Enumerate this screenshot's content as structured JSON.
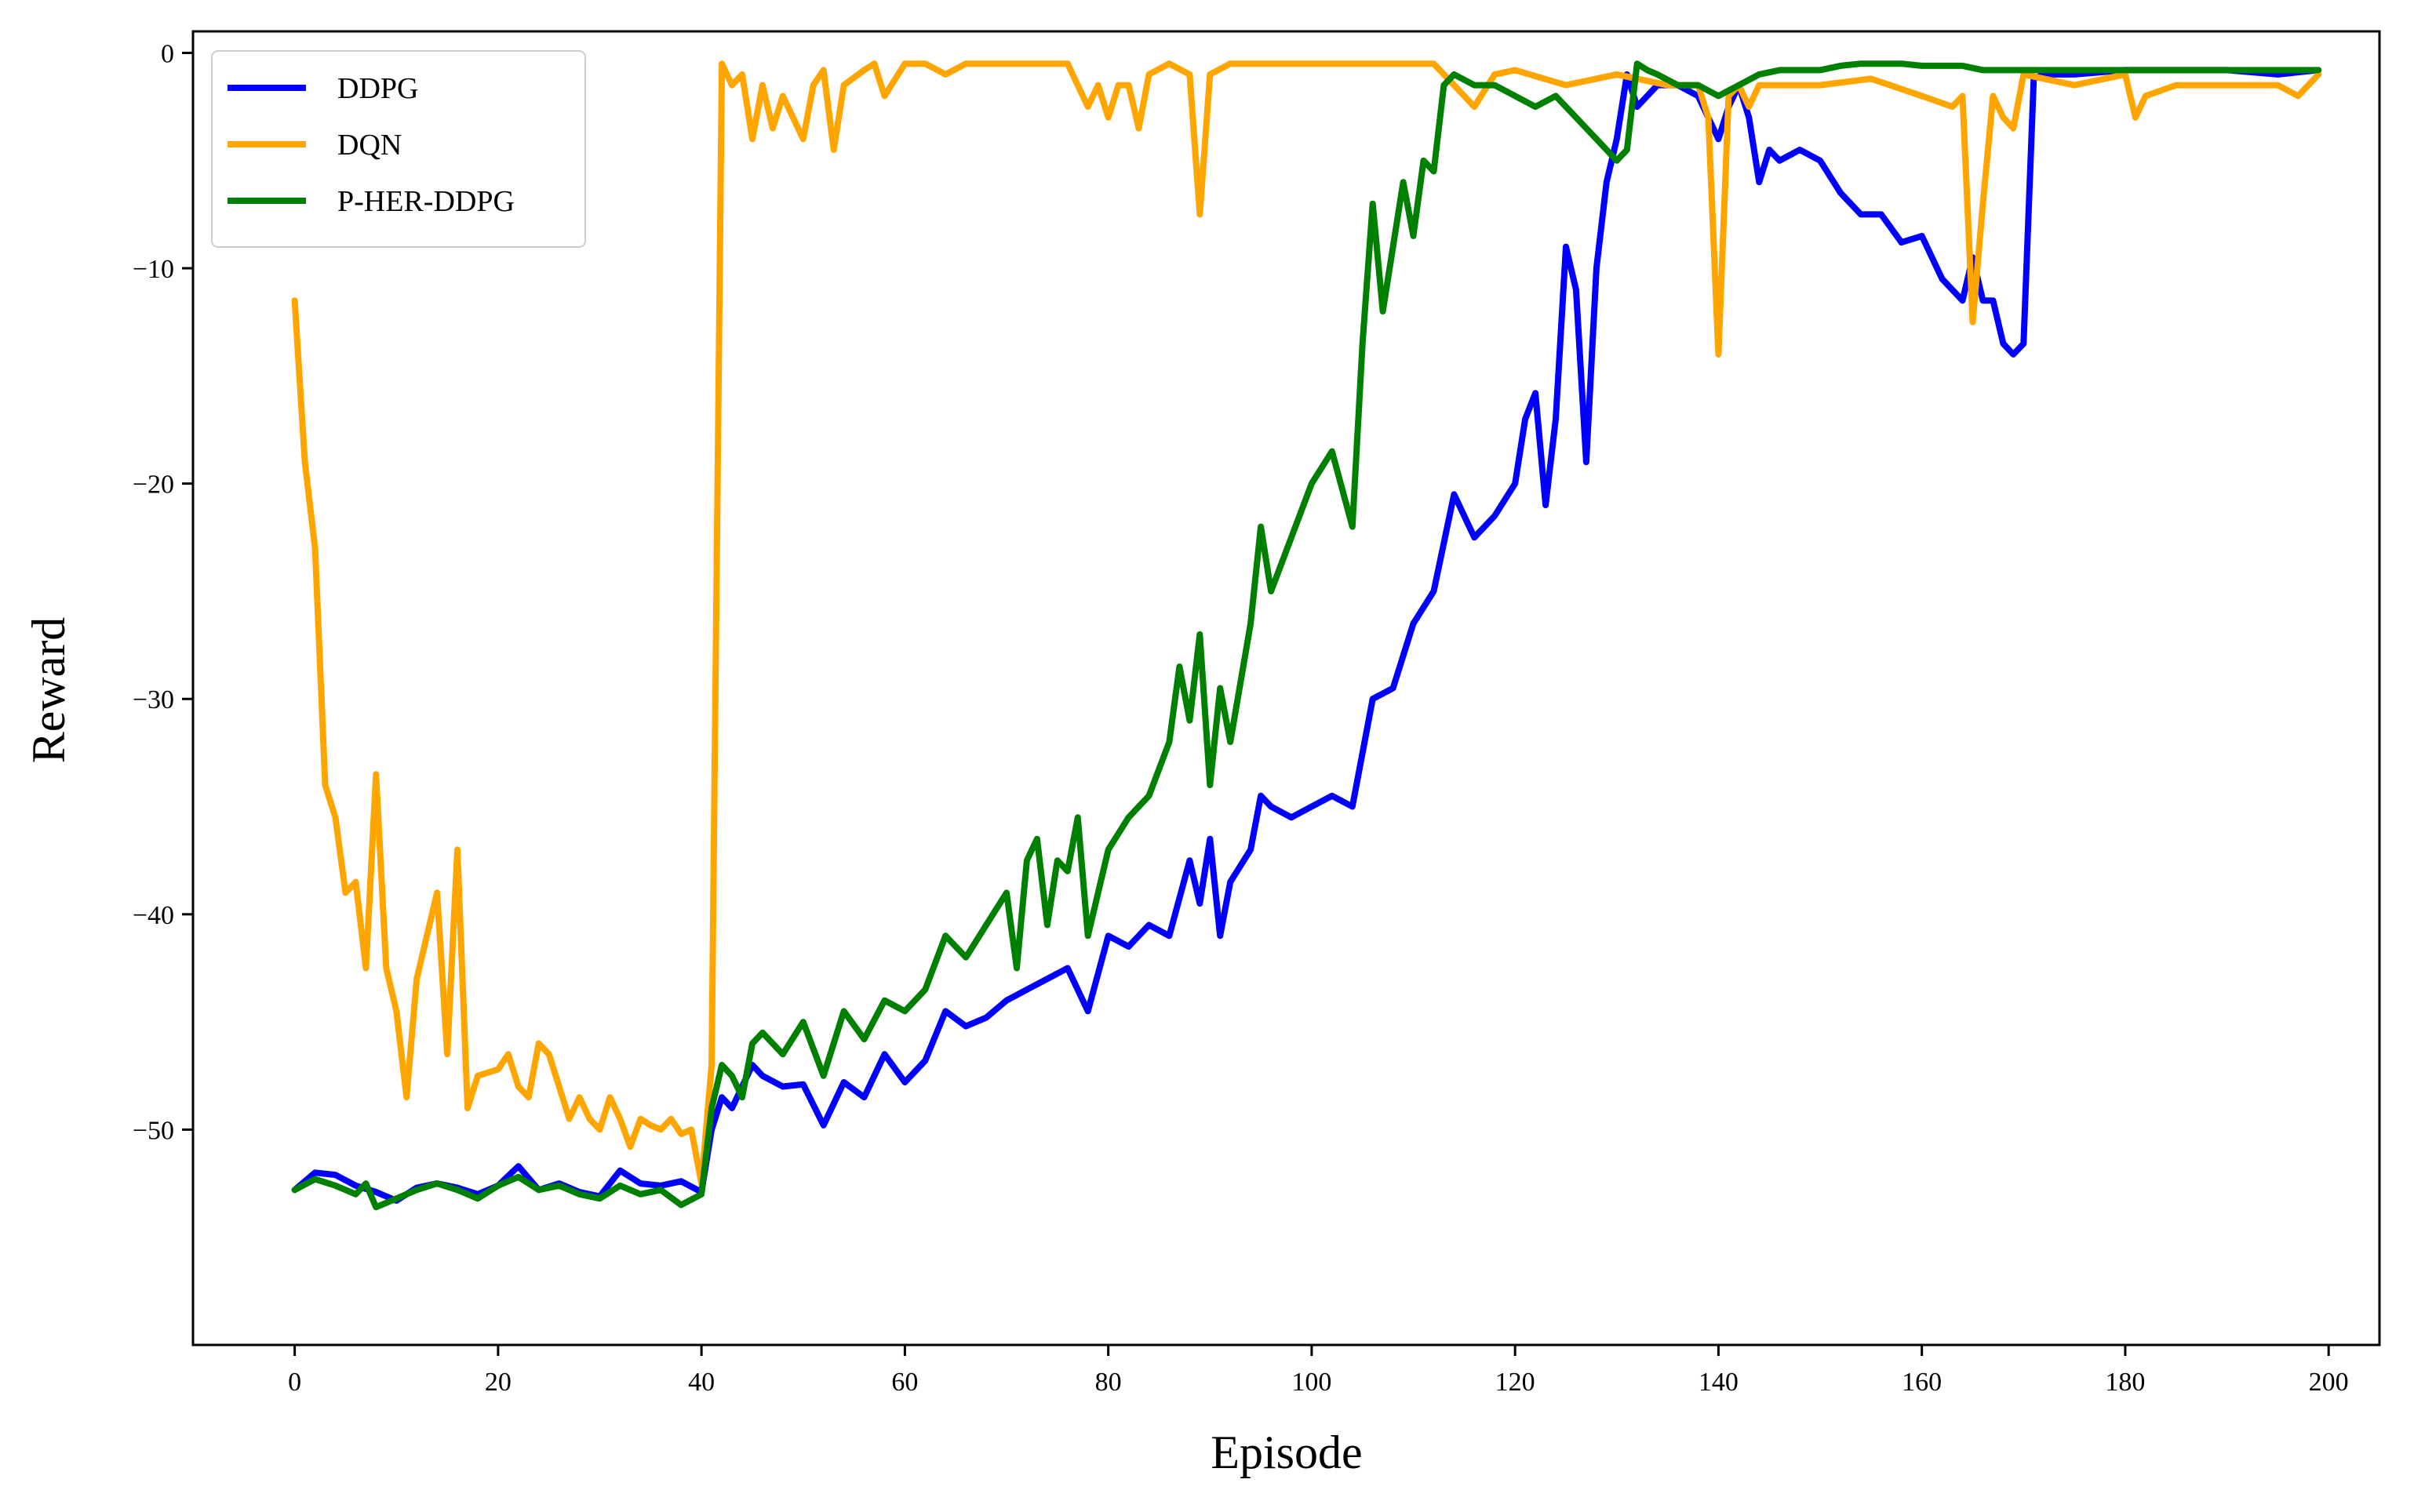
{
  "chart_data": {
    "type": "line",
    "title": "",
    "xlabel": "Episode",
    "ylabel": "Reward",
    "xlim": [
      -10,
      205
    ],
    "ylim": [
      -60,
      1
    ],
    "xticks": [
      0,
      20,
      40,
      60,
      80,
      100,
      120,
      140,
      160,
      180,
      200
    ],
    "yticks": [
      -50,
      -40,
      -30,
      -20,
      -10,
      0
    ],
    "ytick_labels": [
      "−50",
      "−40",
      "−30",
      "−20",
      "−10",
      "0"
    ],
    "grid": false,
    "legend": "top-left",
    "series": [
      {
        "name": "DDPG",
        "color": "#0000ff",
        "x": [
          0,
          2,
          4,
          6,
          8,
          10,
          12,
          14,
          16,
          18,
          20,
          22,
          24,
          26,
          28,
          30,
          32,
          34,
          36,
          38,
          40,
          41,
          42,
          43,
          44,
          45,
          46,
          48,
          50,
          52,
          54,
          56,
          58,
          60,
          62,
          64,
          66,
          68,
          70,
          72,
          74,
          76,
          78,
          80,
          82,
          84,
          86,
          88,
          89,
          90,
          91,
          92,
          94,
          95,
          96,
          98,
          100,
          102,
          104,
          106,
          108,
          110,
          112,
          114,
          116,
          118,
          120,
          121,
          122,
          123,
          124,
          125,
          126,
          127,
          128,
          129,
          130,
          131,
          132,
          134,
          136,
          138,
          140,
          141,
          142,
          143,
          144,
          145,
          146,
          148,
          150,
          152,
          154,
          156,
          158,
          160,
          162,
          164,
          165,
          166,
          167,
          168,
          169,
          170,
          171,
          172,
          175,
          180,
          185,
          190,
          195,
          199
        ],
        "y": [
          -52.8,
          -52.0,
          -52.1,
          -52.6,
          -52.9,
          -53.3,
          -52.7,
          -52.5,
          -52.7,
          -53.0,
          -52.6,
          -51.7,
          -52.8,
          -52.5,
          -52.9,
          -53.1,
          -51.9,
          -52.5,
          -52.6,
          -52.4,
          -52.9,
          -50.0,
          -48.5,
          -49.0,
          -48.0,
          -47.0,
          -47.5,
          -48.0,
          -47.9,
          -49.8,
          -47.8,
          -48.5,
          -46.5,
          -47.8,
          -46.8,
          -44.5,
          -45.2,
          -44.8,
          -44.0,
          -43.5,
          -43.0,
          -42.5,
          -44.5,
          -41.0,
          -41.5,
          -40.5,
          -41.0,
          -37.5,
          -39.5,
          -36.5,
          -41.0,
          -38.5,
          -37.0,
          -34.5,
          -35.0,
          -35.5,
          -35.0,
          -34.5,
          -35.0,
          -30.0,
          -29.5,
          -26.5,
          -25.0,
          -20.5,
          -22.5,
          -21.5,
          -20.0,
          -17.0,
          -15.8,
          -21.0,
          -17.0,
          -9.0,
          -11.0,
          -19.0,
          -10.0,
          -6.0,
          -4.0,
          -1.0,
          -2.5,
          -1.5,
          -1.5,
          -2.0,
          -4.0,
          -2.5,
          -1.5,
          -3.0,
          -6.0,
          -4.5,
          -5.0,
          -4.5,
          -5.0,
          -6.5,
          -7.5,
          -7.5,
          -8.8,
          -8.5,
          -10.5,
          -11.5,
          -9.5,
          -11.5,
          -11.5,
          -13.5,
          -14.0,
          -13.5,
          -1.2,
          -1.0,
          -1.0,
          -0.8,
          -0.8,
          -0.8,
          -1.0,
          -0.8
        ]
      },
      {
        "name": "DQN",
        "color": "#ffa500",
        "x": [
          0,
          1,
          2,
          3,
          4,
          5,
          6,
          7,
          8,
          9,
          10,
          11,
          12,
          13,
          14,
          15,
          16,
          17,
          18,
          20,
          21,
          22,
          23,
          24,
          25,
          26,
          27,
          28,
          29,
          30,
          31,
          32,
          33,
          34,
          35,
          36,
          37,
          38,
          39,
          40,
          41,
          42,
          43,
          44,
          45,
          46,
          47,
          48,
          49,
          50,
          51,
          52,
          53,
          54,
          56,
          57,
          58,
          60,
          62,
          64,
          66,
          68,
          70,
          72,
          74,
          76,
          78,
          79,
          80,
          81,
          82,
          83,
          84,
          86,
          88,
          89,
          90,
          92,
          94,
          96,
          98,
          100,
          102,
          104,
          106,
          108,
          110,
          112,
          114,
          116,
          118,
          120,
          125,
          130,
          135,
          138,
          139,
          140,
          141,
          142,
          143,
          144,
          145,
          150,
          155,
          160,
          163,
          164,
          165,
          166,
          167,
          168,
          169,
          170,
          175,
          180,
          181,
          182,
          185,
          190,
          195,
          197,
          199
        ],
        "y": [
          -11.5,
          -19.0,
          -23.0,
          -34.0,
          -35.5,
          -39.0,
          -38.5,
          -42.5,
          -33.5,
          -42.5,
          -44.5,
          -48.5,
          -43.0,
          -41.0,
          -39.0,
          -46.5,
          -37.0,
          -49.0,
          -47.5,
          -47.2,
          -46.5,
          -48.0,
          -48.5,
          -46.0,
          -46.5,
          -48.0,
          -49.5,
          -48.5,
          -49.5,
          -50.0,
          -48.5,
          -49.5,
          -50.8,
          -49.5,
          -49.8,
          -50.0,
          -49.5,
          -50.2,
          -50.0,
          -52.5,
          -47.0,
          -0.5,
          -1.5,
          -1.0,
          -4.0,
          -1.5,
          -3.5,
          -2.0,
          -3.0,
          -4.0,
          -1.5,
          -0.8,
          -4.5,
          -1.5,
          -0.8,
          -0.5,
          -2.0,
          -0.5,
          -0.5,
          -1.0,
          -0.5,
          -0.5,
          -0.5,
          -0.5,
          -0.5,
          -0.5,
          -2.5,
          -1.5,
          -3.0,
          -1.5,
          -1.5,
          -3.5,
          -1.0,
          -0.5,
          -1.0,
          -7.5,
          -1.0,
          -0.5,
          -0.5,
          -0.5,
          -0.5,
          -0.5,
          -0.5,
          -0.5,
          -0.5,
          -0.5,
          -0.5,
          -0.5,
          -1.5,
          -2.5,
          -1.0,
          -0.8,
          -1.5,
          -1.0,
          -1.5,
          -1.5,
          -3.0,
          -14.0,
          -2.0,
          -1.5,
          -2.5,
          -1.5,
          -1.5,
          -1.5,
          -1.2,
          -2.0,
          -2.5,
          -2.0,
          -12.5,
          -7.0,
          -2.0,
          -3.0,
          -3.5,
          -1.0,
          -1.5,
          -1.0,
          -3.0,
          -2.0,
          -1.5,
          -1.5,
          -1.5,
          -2.0,
          -1.0
        ]
      },
      {
        "name": "P-HER-DDPG",
        "color": "#008000",
        "x": [
          0,
          2,
          4,
          6,
          7,
          8,
          10,
          12,
          14,
          16,
          18,
          20,
          22,
          24,
          26,
          28,
          30,
          32,
          34,
          36,
          38,
          40,
          41,
          42,
          43,
          44,
          45,
          46,
          48,
          50,
          52,
          54,
          56,
          58,
          60,
          62,
          64,
          66,
          68,
          70,
          71,
          72,
          73,
          74,
          75,
          76,
          77,
          78,
          80,
          82,
          84,
          86,
          87,
          88,
          89,
          90,
          91,
          92,
          94,
          95,
          96,
          98,
          100,
          102,
          104,
          105,
          106,
          107,
          108,
          109,
          110,
          111,
          112,
          113,
          114,
          116,
          118,
          120,
          122,
          124,
          126,
          128,
          129,
          130,
          131,
          132,
          133,
          134,
          136,
          138,
          140,
          142,
          144,
          146,
          148,
          150,
          152,
          154,
          156,
          158,
          160,
          162,
          164,
          166,
          168,
          170,
          175,
          180,
          185,
          190,
          195,
          199
        ],
        "y": [
          -52.8,
          -52.3,
          -52.6,
          -53.0,
          -52.5,
          -53.6,
          -53.2,
          -52.8,
          -52.5,
          -52.8,
          -53.2,
          -52.6,
          -52.2,
          -52.8,
          -52.6,
          -53.0,
          -53.2,
          -52.6,
          -53.0,
          -52.8,
          -53.5,
          -53.0,
          -49.0,
          -47.0,
          -47.5,
          -48.5,
          -46.0,
          -45.5,
          -46.5,
          -45.0,
          -47.5,
          -44.5,
          -45.8,
          -44.0,
          -44.5,
          -43.5,
          -41.0,
          -42.0,
          -40.5,
          -39.0,
          -42.5,
          -37.5,
          -36.5,
          -40.5,
          -37.5,
          -38.0,
          -35.5,
          -41.0,
          -37.0,
          -35.5,
          -34.5,
          -32.0,
          -28.5,
          -31.0,
          -27.0,
          -34.0,
          -29.5,
          -32.0,
          -26.5,
          -22.0,
          -25.0,
          -22.5,
          -20.0,
          -18.5,
          -22.0,
          -13.5,
          -7.0,
          -12.0,
          -9.0,
          -6.0,
          -8.5,
          -5.0,
          -5.5,
          -1.5,
          -1.0,
          -1.5,
          -1.5,
          -2.0,
          -2.5,
          -2.0,
          -3.0,
          -4.0,
          -4.5,
          -5.0,
          -4.5,
          -0.5,
          -0.8,
          -1.0,
          -1.5,
          -1.5,
          -2.0,
          -1.5,
          -1.0,
          -0.8,
          -0.8,
          -0.8,
          -0.6,
          -0.5,
          -0.5,
          -0.5,
          -0.6,
          -0.6,
          -0.6,
          -0.8,
          -0.8,
          -0.8,
          -0.8,
          -0.8,
          -0.8,
          -0.8,
          -0.8,
          -0.8
        ]
      }
    ]
  }
}
